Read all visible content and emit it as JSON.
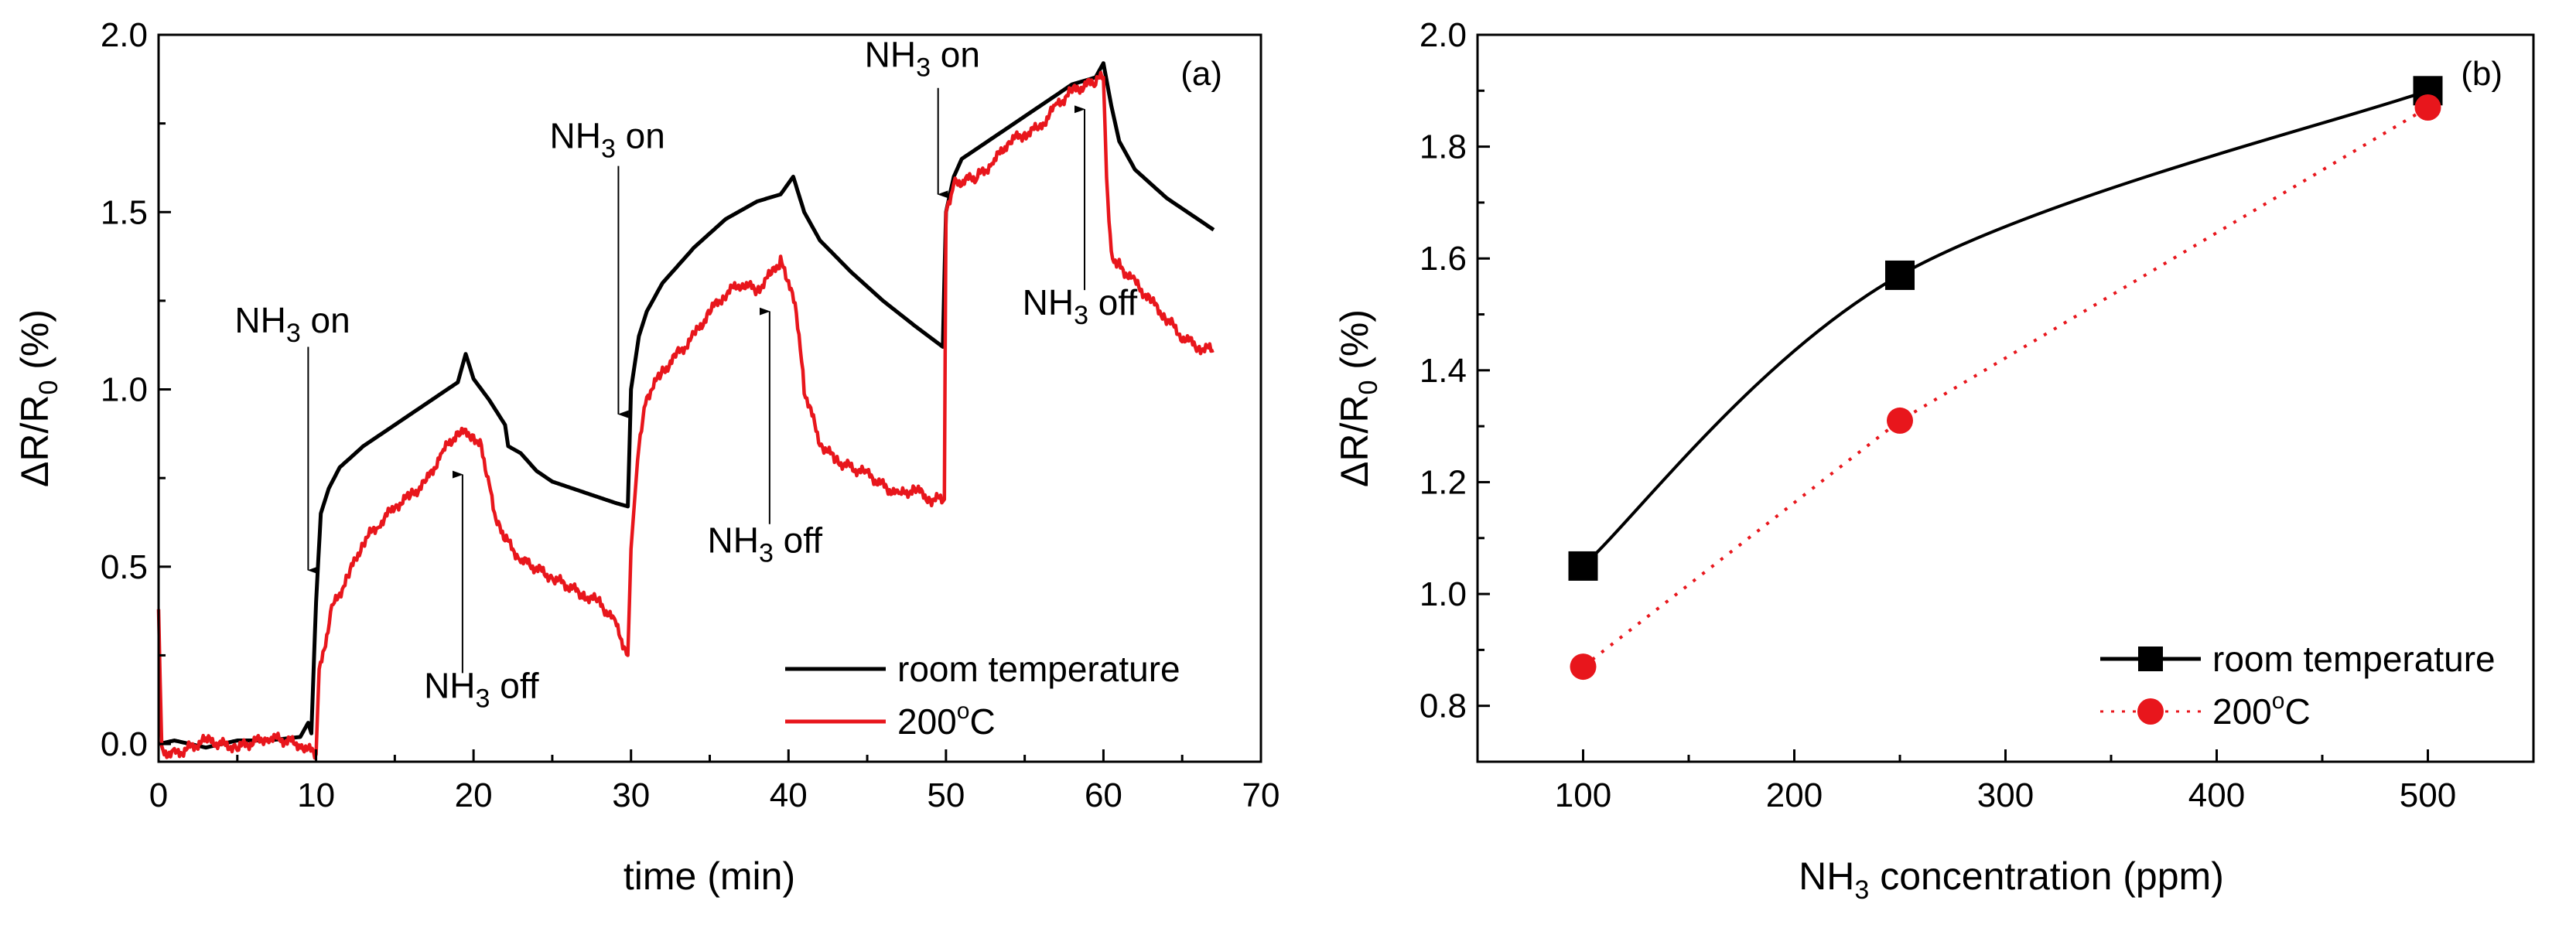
{
  "chart_data": [
    {
      "id": "a",
      "type": "line",
      "panel_label": "(a)",
      "xlabel": "time (min)",
      "ylabel": {
        "prefix": "ΔR/R",
        "sub": "0",
        "suffix": " (%)"
      },
      "xlim": [
        0,
        70
      ],
      "ylim": [
        -0.05,
        2.0
      ],
      "xticks": [
        "0",
        "10",
        "20",
        "30",
        "40",
        "50",
        "60",
        "70"
      ],
      "yticks": [
        "0.0",
        "0.5",
        "1.0",
        "1.5",
        "2.0"
      ],
      "series": [
        {
          "name": "room temperature",
          "color": "#000000",
          "points": [
            [
              0,
              0
            ],
            [
              1,
              0.01
            ],
            [
              3,
              -0.01
            ],
            [
              5,
              0.01
            ],
            [
              7,
              0.01
            ],
            [
              9,
              0.02
            ],
            [
              9.5,
              0.06
            ],
            [
              9.7,
              0.03
            ],
            [
              10,
              0.4
            ],
            [
              10.3,
              0.65
            ],
            [
              10.8,
              0.72
            ],
            [
              11.5,
              0.78
            ],
            [
              13,
              0.84
            ],
            [
              15,
              0.9
            ],
            [
              17,
              0.96
            ],
            [
              19,
              1.02
            ],
            [
              19.5,
              1.1
            ],
            [
              20,
              1.03
            ],
            [
              21,
              0.97
            ],
            [
              22,
              0.9
            ],
            [
              22.2,
              0.84
            ],
            [
              23,
              0.82
            ],
            [
              24,
              0.77
            ],
            [
              25,
              0.74
            ],
            [
              27,
              0.71
            ],
            [
              29,
              0.68
            ],
            [
              29.8,
              0.67
            ],
            [
              30,
              1.0
            ],
            [
              30.5,
              1.15
            ],
            [
              31,
              1.22
            ],
            [
              32,
              1.3
            ],
            [
              34,
              1.4
            ],
            [
              36,
              1.48
            ],
            [
              38,
              1.53
            ],
            [
              39.5,
              1.55
            ],
            [
              40.3,
              1.6
            ],
            [
              41,
              1.5
            ],
            [
              42,
              1.42
            ],
            [
              44,
              1.33
            ],
            [
              46,
              1.25
            ],
            [
              48,
              1.18
            ],
            [
              49.8,
              1.12
            ],
            [
              50,
              1.5
            ],
            [
              50.5,
              1.6
            ],
            [
              51,
              1.65
            ],
            [
              52,
              1.68
            ],
            [
              54,
              1.74
            ],
            [
              56,
              1.8
            ],
            [
              58,
              1.86
            ],
            [
              59.5,
              1.88
            ],
            [
              60,
              1.92
            ],
            [
              60.5,
              1.8
            ],
            [
              61,
              1.7
            ],
            [
              62,
              1.62
            ],
            [
              64,
              1.54
            ],
            [
              66,
              1.48
            ],
            [
              67,
              1.45
            ]
          ]
        },
        {
          "name": "200°C",
          "color": "#e8161c",
          "points": [
            [
              0,
              0.38
            ],
            [
              0.2,
              -0.02
            ],
            [
              1,
              -0.03
            ],
            [
              3,
              0.01
            ],
            [
              5,
              -0.01
            ],
            [
              7,
              0.02
            ],
            [
              9,
              0
            ],
            [
              10,
              -0.03
            ],
            [
              10.2,
              0.2
            ],
            [
              11,
              0.38
            ],
            [
              12,
              0.47
            ],
            [
              13,
              0.57
            ],
            [
              14,
              0.62
            ],
            [
              15,
              0.67
            ],
            [
              16,
              0.7
            ],
            [
              17,
              0.74
            ],
            [
              18,
              0.82
            ],
            [
              19,
              0.88
            ],
            [
              20,
              0.87
            ],
            [
              20.5,
              0.84
            ],
            [
              21,
              0.73
            ],
            [
              21.5,
              0.62
            ],
            [
              22,
              0.58
            ],
            [
              23,
              0.52
            ],
            [
              25,
              0.47
            ],
            [
              27,
              0.42
            ],
            [
              28,
              0.4
            ],
            [
              29,
              0.34
            ],
            [
              29.8,
              0.25
            ],
            [
              30,
              0.55
            ],
            [
              30.5,
              0.85
            ],
            [
              31,
              0.98
            ],
            [
              32,
              1.05
            ],
            [
              33,
              1.1
            ],
            [
              34,
              1.15
            ],
            [
              35,
              1.22
            ],
            [
              36,
              1.27
            ],
            [
              37,
              1.3
            ],
            [
              38,
              1.28
            ],
            [
              39,
              1.33
            ],
            [
              39.5,
              1.36
            ],
            [
              40,
              1.3
            ],
            [
              40.5,
              1.22
            ],
            [
              41,
              1.0
            ],
            [
              42,
              0.85
            ],
            [
              43,
              0.8
            ],
            [
              45,
              0.76
            ],
            [
              47,
              0.7
            ],
            [
              48,
              0.72
            ],
            [
              49,
              0.69
            ],
            [
              49.9,
              0.69
            ],
            [
              50,
              1.5
            ],
            [
              50.5,
              1.58
            ],
            [
              52,
              1.6
            ],
            [
              53,
              1.64
            ],
            [
              54,
              1.7
            ],
            [
              55,
              1.72
            ],
            [
              56,
              1.74
            ],
            [
              57,
              1.8
            ],
            [
              58,
              1.84
            ],
            [
              59.5,
              1.87
            ],
            [
              60,
              1.88
            ],
            [
              60.2,
              1.6
            ],
            [
              60.5,
              1.38
            ],
            [
              61,
              1.35
            ],
            [
              62,
              1.3
            ],
            [
              63,
              1.25
            ],
            [
              64,
              1.2
            ],
            [
              65,
              1.15
            ],
            [
              66,
              1.12
            ],
            [
              67,
              1.11
            ]
          ]
        }
      ],
      "annotations": [
        {
          "text": "NH",
          "sub": "3",
          "rest": " on",
          "x": 8.5,
          "y": 1.16,
          "arrow_x": 9.5,
          "arrow_from_y": 1.12,
          "arrow_to_y": 0.49
        },
        {
          "text": "NH",
          "sub": "3",
          "rest": " off",
          "x": 20.5,
          "y": 0.13,
          "arrow_x": 19.3,
          "arrow_from_y": 0.2,
          "arrow_to_y": 0.76
        },
        {
          "text": "NH",
          "sub": "3",
          "rest": " on",
          "x": 28.5,
          "y": 1.68,
          "arrow_x": 29.2,
          "arrow_from_y": 1.63,
          "arrow_to_y": 0.93
        },
        {
          "text": "NH",
          "sub": "3",
          "rest": " off",
          "x": 38.5,
          "y": 0.54,
          "arrow_x": 38.8,
          "arrow_from_y": 0.62,
          "arrow_to_y": 1.22
        },
        {
          "text": "NH",
          "sub": "3",
          "rest": " on",
          "x": 48.5,
          "y": 1.91,
          "arrow_x": 49.5,
          "arrow_from_y": 1.85,
          "arrow_to_y": 1.55
        },
        {
          "text": "NH",
          "sub": "3",
          "rest": " off",
          "x": 58.5,
          "y": 1.21,
          "arrow_x": 58.8,
          "arrow_from_y": 1.28,
          "arrow_to_y": 1.79
        }
      ],
      "legend": {
        "placement": "bottom-right",
        "entries": [
          {
            "label": "room temperature",
            "color": "#000000",
            "marker": "none",
            "dash": "solid"
          },
          {
            "label": "200",
            "sup": "o",
            "tail": "C",
            "color": "#e8161c",
            "marker": "none",
            "dash": "solid"
          }
        ]
      }
    },
    {
      "id": "b",
      "type": "line",
      "panel_label": "(b)",
      "xlabel": {
        "prefix": "NH",
        "sub": "3",
        "suffix": " concentration (ppm)"
      },
      "ylabel": {
        "prefix": "ΔR/R",
        "sub": "0",
        "suffix": " (%)"
      },
      "xlim": [
        50,
        550
      ],
      "ylim": [
        0.7,
        2.0
      ],
      "xticks": [
        "100",
        "200",
        "300",
        "400",
        "500"
      ],
      "yticks": [
        "0.8",
        "1.0",
        "1.2",
        "1.4",
        "1.6",
        "1.8",
        "2.0"
      ],
      "series": [
        {
          "name": "room temperature",
          "color": "#000000",
          "marker": "square",
          "style": "solid-smooth",
          "x": [
            100,
            250,
            500
          ],
          "y": [
            1.05,
            1.57,
            1.9
          ]
        },
        {
          "name": "200°C",
          "color": "#e8161c",
          "marker": "circle",
          "style": "dotted",
          "x": [
            100,
            250,
            500
          ],
          "y": [
            0.87,
            1.31,
            1.87
          ]
        }
      ],
      "legend": {
        "placement": "bottom-right",
        "entries": [
          {
            "label": "room temperature",
            "color": "#000000",
            "marker": "square",
            "dash": "solid"
          },
          {
            "label": "200",
            "sup": "o",
            "tail": "C",
            "color": "#e8161c",
            "marker": "circle",
            "dash": "dotted"
          }
        ]
      }
    }
  ]
}
